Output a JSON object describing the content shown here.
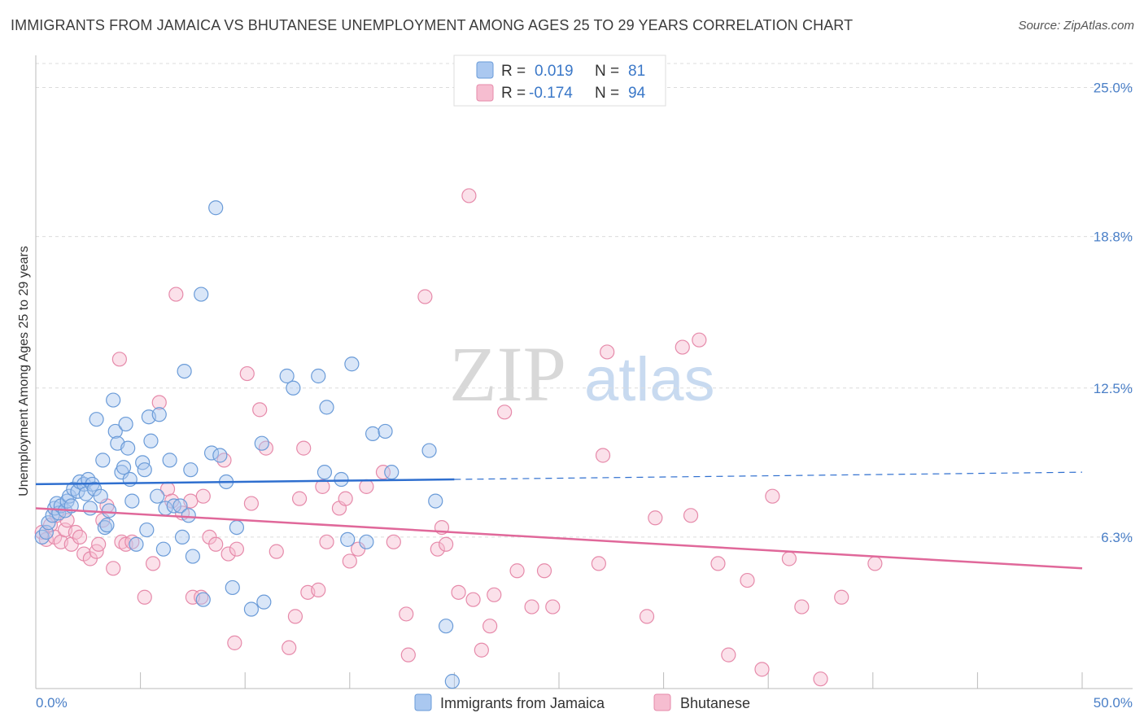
{
  "title": "IMMIGRANTS FROM JAMAICA VS BHUTANESE UNEMPLOYMENT AMONG AGES 25 TO 29 YEARS CORRELATION CHART",
  "source": "Source: ZipAtlas.com",
  "colors": {
    "blue_fill": "#aac8f0",
    "blue_stroke": "#6a9bd8",
    "blue_line": "#2f6fcf",
    "pink_fill": "#f6bdd0",
    "pink_stroke": "#e68aaa",
    "pink_line": "#e0689a",
    "axis_label": "#4a7fc7"
  },
  "legend_top": {
    "rows": [
      {
        "r_label": "R =",
        "r_value": "0.019",
        "n_label": "N =",
        "n_value": "81"
      },
      {
        "r_label": "R =",
        "r_value": "-0.174",
        "n_label": "N =",
        "n_value": "94"
      }
    ]
  },
  "watermark": {
    "zip": "ZIP",
    "atlas": "atlas"
  },
  "chart_data": {
    "type": "scatter",
    "title": "IMMIGRANTS FROM JAMAICA VS BHUTANESE UNEMPLOYMENT AMONG AGES 25 TO 29 YEARS CORRELATION CHART",
    "xlabel": "",
    "ylabel": "Unemployment Among Ages 25 to 29 years",
    "xlim": [
      0,
      50
    ],
    "ylim": [
      0,
      26.0
    ],
    "x_tick_labels": [
      "0.0%",
      "50.0%"
    ],
    "y_tick_labels": [
      "6.3%",
      "12.5%",
      "18.8%",
      "25.0%"
    ],
    "y_ticks": [
      6.3,
      12.5,
      18.8,
      25.0
    ],
    "series": [
      {
        "name": "Immigrants from Jamaica",
        "r": 0.019,
        "n": 81,
        "trend": {
          "x0": 0,
          "y0": 8.5,
          "x1": 20,
          "y1": 8.7,
          "x_extend": 50,
          "y_extend": 9.0
        },
        "points": [
          [
            0.3,
            6.3
          ],
          [
            0.5,
            6.5
          ],
          [
            0.6,
            6.9
          ],
          [
            0.8,
            7.2
          ],
          [
            0.9,
            7.5
          ],
          [
            1.0,
            7.7
          ],
          [
            1.1,
            7.3
          ],
          [
            1.2,
            7.6
          ],
          [
            1.4,
            7.4
          ],
          [
            1.5,
            7.8
          ],
          [
            1.6,
            8.0
          ],
          [
            1.7,
            7.6
          ],
          [
            1.8,
            8.3
          ],
          [
            2.0,
            8.2
          ],
          [
            2.1,
            8.6
          ],
          [
            2.3,
            8.5
          ],
          [
            2.4,
            8.1
          ],
          [
            2.5,
            8.7
          ],
          [
            2.6,
            7.5
          ],
          [
            2.7,
            8.5
          ],
          [
            2.8,
            8.3
          ],
          [
            2.9,
            11.2
          ],
          [
            3.1,
            8.0
          ],
          [
            3.2,
            9.5
          ],
          [
            3.3,
            6.7
          ],
          [
            3.4,
            6.8
          ],
          [
            3.5,
            7.4
          ],
          [
            3.7,
            12.0
          ],
          [
            3.8,
            10.7
          ],
          [
            3.9,
            10.2
          ],
          [
            4.1,
            9.0
          ],
          [
            4.2,
            9.2
          ],
          [
            4.3,
            11.0
          ],
          [
            4.4,
            10.0
          ],
          [
            4.5,
            8.7
          ],
          [
            4.6,
            7.8
          ],
          [
            4.8,
            6.0
          ],
          [
            5.1,
            9.4
          ],
          [
            5.2,
            9.1
          ],
          [
            5.3,
            6.6
          ],
          [
            5.4,
            11.3
          ],
          [
            5.5,
            10.3
          ],
          [
            5.9,
            11.4
          ],
          [
            5.8,
            8.0
          ],
          [
            6.1,
            5.8
          ],
          [
            6.2,
            7.5
          ],
          [
            6.4,
            9.5
          ],
          [
            6.6,
            7.6
          ],
          [
            6.9,
            7.6
          ],
          [
            7.0,
            6.3
          ],
          [
            7.1,
            13.2
          ],
          [
            7.3,
            7.2
          ],
          [
            7.4,
            9.1
          ],
          [
            7.5,
            5.5
          ],
          [
            7.9,
            16.4
          ],
          [
            8.0,
            3.7
          ],
          [
            8.4,
            9.8
          ],
          [
            8.6,
            20.0
          ],
          [
            8.8,
            9.7
          ],
          [
            9.1,
            8.6
          ],
          [
            9.4,
            4.2
          ],
          [
            9.6,
            6.7
          ],
          [
            10.3,
            3.3
          ],
          [
            10.8,
            10.2
          ],
          [
            10.9,
            3.6
          ],
          [
            12.0,
            13.0
          ],
          [
            12.3,
            12.5
          ],
          [
            13.5,
            13.0
          ],
          [
            13.8,
            9.0
          ],
          [
            13.9,
            11.7
          ],
          [
            14.6,
            8.7
          ],
          [
            14.9,
            6.2
          ],
          [
            15.1,
            13.5
          ],
          [
            15.8,
            6.1
          ],
          [
            16.1,
            10.6
          ],
          [
            16.7,
            10.7
          ],
          [
            17.0,
            9.0
          ],
          [
            18.8,
            9.9
          ],
          [
            19.1,
            7.8
          ],
          [
            19.6,
            2.6
          ],
          [
            19.9,
            0.3
          ]
        ]
      },
      {
        "name": "Bhutanese",
        "r": -0.174,
        "n": 94,
        "trend": {
          "x0": 0,
          "y0": 7.5,
          "x1": 50,
          "y1": 5.0
        },
        "points": [
          [
            0.3,
            6.5
          ],
          [
            0.5,
            6.2
          ],
          [
            0.7,
            6.8
          ],
          [
            0.9,
            6.3
          ],
          [
            1.0,
            7.2
          ],
          [
            1.2,
            6.1
          ],
          [
            1.4,
            6.6
          ],
          [
            1.5,
            7.0
          ],
          [
            1.7,
            6.0
          ],
          [
            1.9,
            6.5
          ],
          [
            2.1,
            6.3
          ],
          [
            2.3,
            5.6
          ],
          [
            2.6,
            5.4
          ],
          [
            2.9,
            5.7
          ],
          [
            3.0,
            6.0
          ],
          [
            3.2,
            7.0
          ],
          [
            3.4,
            7.6
          ],
          [
            3.7,
            5.0
          ],
          [
            4.0,
            13.7
          ],
          [
            4.1,
            6.1
          ],
          [
            4.3,
            6.0
          ],
          [
            4.6,
            6.1
          ],
          [
            5.2,
            3.8
          ],
          [
            5.6,
            5.2
          ],
          [
            5.9,
            11.9
          ],
          [
            6.3,
            8.3
          ],
          [
            6.5,
            7.8
          ],
          [
            6.7,
            16.4
          ],
          [
            7.0,
            7.3
          ],
          [
            7.4,
            7.8
          ],
          [
            7.5,
            3.8
          ],
          [
            7.9,
            3.8
          ],
          [
            8.0,
            8.0
          ],
          [
            8.3,
            6.3
          ],
          [
            8.6,
            6.0
          ],
          [
            9.0,
            9.5
          ],
          [
            9.2,
            5.6
          ],
          [
            9.5,
            1.9
          ],
          [
            9.6,
            5.8
          ],
          [
            10.1,
            13.1
          ],
          [
            10.3,
            7.7
          ],
          [
            10.7,
            11.6
          ],
          [
            11.0,
            10.0
          ],
          [
            11.5,
            5.7
          ],
          [
            12.1,
            1.7
          ],
          [
            12.4,
            3.0
          ],
          [
            12.6,
            7.9
          ],
          [
            12.8,
            10.0
          ],
          [
            13.0,
            4.0
          ],
          [
            13.5,
            4.1
          ],
          [
            13.7,
            8.4
          ],
          [
            13.9,
            6.1
          ],
          [
            14.5,
            7.5
          ],
          [
            14.8,
            7.9
          ],
          [
            15.0,
            5.3
          ],
          [
            15.4,
            5.8
          ],
          [
            15.8,
            8.4
          ],
          [
            16.6,
            9.0
          ],
          [
            17.1,
            6.1
          ],
          [
            17.7,
            3.1
          ],
          [
            17.8,
            1.4
          ],
          [
            18.6,
            16.3
          ],
          [
            19.2,
            5.8
          ],
          [
            19.4,
            6.7
          ],
          [
            19.6,
            6.0
          ],
          [
            20.2,
            4.0
          ],
          [
            20.7,
            20.5
          ],
          [
            20.9,
            3.7
          ],
          [
            21.3,
            1.6
          ],
          [
            21.7,
            2.6
          ],
          [
            21.9,
            3.9
          ],
          [
            22.4,
            11.5
          ],
          [
            23.0,
            4.9
          ],
          [
            23.7,
            3.4
          ],
          [
            24.3,
            4.9
          ],
          [
            24.7,
            3.4
          ],
          [
            26.9,
            5.2
          ],
          [
            27.1,
            9.7
          ],
          [
            27.3,
            14.0
          ],
          [
            29.2,
            3.0
          ],
          [
            29.6,
            7.1
          ],
          [
            30.9,
            14.2
          ],
          [
            31.3,
            7.2
          ],
          [
            31.7,
            14.5
          ],
          [
            32.6,
            5.2
          ],
          [
            33.1,
            1.4
          ],
          [
            34.0,
            4.5
          ],
          [
            34.7,
            0.8
          ],
          [
            35.2,
            8.0
          ],
          [
            36.0,
            5.4
          ],
          [
            36.6,
            3.4
          ],
          [
            37.5,
            0.4
          ],
          [
            38.5,
            3.8
          ],
          [
            40.1,
            5.2
          ]
        ]
      }
    ]
  },
  "bottom_legend": [
    "Immigrants from Jamaica",
    "Bhutanese"
  ]
}
